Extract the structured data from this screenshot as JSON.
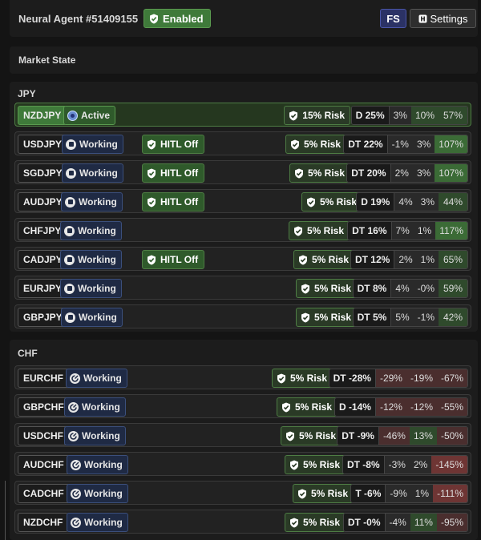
{
  "header": {
    "agent_title": "Neural Agent #51409155",
    "enabled_label": "Enabled",
    "fs_label": "FS",
    "settings_label": "Settings"
  },
  "market_state": {
    "title": "Market State"
  },
  "colors": {
    "green_strong": "#3b6b36",
    "green_soft": "#2f4a2c",
    "red_strong": "#6e3534",
    "red_soft": "#4a2e2e",
    "neutral": "#2a2a2a"
  },
  "groups": [
    {
      "title": "JPY",
      "rows": [
        {
          "pair": "NZDJPY",
          "status": "Active",
          "hitl": null,
          "risk": "15% Risk",
          "label": "D 25%",
          "c1": "3%",
          "c2": "10%",
          "c3": "57%",
          "active": true
        },
        {
          "pair": "USDJPY",
          "status": "Working",
          "hitl": "HITL Off",
          "risk": "5% Risk",
          "label": "DT 22%",
          "c1": "-1%",
          "c2": "3%",
          "c3": "107%"
        },
        {
          "pair": "SGDJPY",
          "status": "Working",
          "hitl": "HITL Off",
          "risk": "5% Risk",
          "label": "DT 20%",
          "c1": "2%",
          "c2": "3%",
          "c3": "107%"
        },
        {
          "pair": "AUDJPY",
          "status": "Working",
          "hitl": "HITL Off",
          "risk": "5% Risk",
          "label": "D 19%",
          "c1": "4%",
          "c2": "3%",
          "c3": "44%"
        },
        {
          "pair": "CHFJPY",
          "status": "Working",
          "hitl": null,
          "risk": "5% Risk",
          "label": "DT 16%",
          "c1": "7%",
          "c2": "1%",
          "c3": "117%"
        },
        {
          "pair": "CADJPY",
          "status": "Working",
          "hitl": "HITL Off",
          "risk": "5% Risk",
          "label": "DT 12%",
          "c1": "2%",
          "c2": "1%",
          "c3": "65%"
        },
        {
          "pair": "EURJPY",
          "status": "Working",
          "hitl": null,
          "risk": "5% Risk",
          "label": "DT 8%",
          "c1": "4%",
          "c2": "-0%",
          "c3": "59%"
        },
        {
          "pair": "GBPJPY",
          "status": "Working",
          "hitl": null,
          "risk": "5% Risk",
          "label": "DT 5%",
          "c1": "5%",
          "c2": "-1%",
          "c3": "42%"
        }
      ]
    },
    {
      "title": "CHF",
      "rows": [
        {
          "pair": "EURCHF",
          "status": "Working",
          "hitl": null,
          "risk": "5% Risk",
          "label": "DT -28%",
          "c1": "-29%",
          "c2": "-19%",
          "c3": "-67%"
        },
        {
          "pair": "GBPCHF",
          "status": "Working",
          "hitl": null,
          "risk": "5% Risk",
          "label": "D -14%",
          "c1": "-12%",
          "c2": "-12%",
          "c3": "-55%"
        },
        {
          "pair": "USDCHF",
          "status": "Working",
          "hitl": null,
          "risk": "5% Risk",
          "label": "DT -9%",
          "c1": "-46%",
          "c2": "13%",
          "c3": "-50%"
        },
        {
          "pair": "AUDCHF",
          "status": "Working",
          "hitl": null,
          "risk": "5% Risk",
          "label": "DT -8%",
          "c1": "-3%",
          "c2": "2%",
          "c3": "-145%"
        },
        {
          "pair": "CADCHF",
          "status": "Working",
          "hitl": null,
          "risk": "5% Risk",
          "label": "T -6%",
          "c1": "-9%",
          "c2": "1%",
          "c3": "-111%"
        },
        {
          "pair": "NZDCHF",
          "status": "Working",
          "hitl": null,
          "risk": "5% Risk",
          "label": "DT -0%",
          "c1": "-4%",
          "c2": "11%",
          "c3": "-95%"
        }
      ]
    }
  ]
}
